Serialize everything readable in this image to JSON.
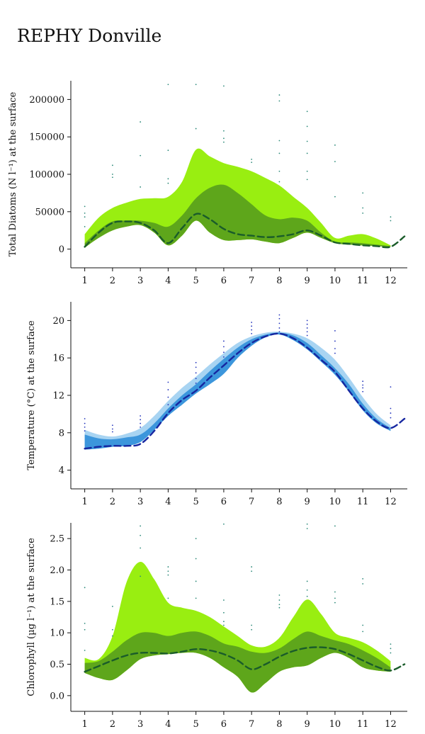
{
  "title": "REPHY Donville",
  "chart_data": [
    {
      "type": "area",
      "ylabel": "Total Diatoms (N l⁻¹) at the surface",
      "x_ticks": [
        1,
        2,
        3,
        4,
        5,
        6,
        7,
        8,
        9,
        10,
        11,
        12
      ],
      "xlim": [
        0.5,
        12.6
      ],
      "y_ticks": [
        0,
        50000,
        100000,
        150000,
        200000
      ],
      "y_tick_labels": [
        "0",
        "50000",
        "100000",
        "150000",
        "200000"
      ],
      "ylim": [
        -25000,
        225000
      ],
      "grid": false,
      "colors": {
        "outer": "#99ee11",
        "inner": "#5ea61b",
        "median": "#1a5c2a",
        "points": "#2e8a7a"
      },
      "median": {
        "x": [
          1,
          1.5,
          2,
          2.5,
          3,
          3.5,
          4,
          4.5,
          5,
          5.5,
          6,
          6.5,
          7,
          7.5,
          8,
          8.5,
          9,
          9.5,
          10,
          10.5,
          11,
          11.5,
          12,
          12.5
        ],
        "y": [
          3000,
          22000,
          35000,
          37000,
          35000,
          25000,
          8000,
          28000,
          47000,
          40000,
          27000,
          20000,
          18000,
          16000,
          17000,
          20000,
          25000,
          18000,
          9000,
          7000,
          5000,
          4000,
          3000,
          17000
        ]
      },
      "inner_band": {
        "x": [
          1,
          1.5,
          2,
          2.5,
          3,
          3.5,
          4,
          4.5,
          5,
          5.5,
          6,
          6.5,
          7,
          7.5,
          8,
          8.5,
          9,
          9.5,
          10,
          10.5,
          11,
          11.5,
          12
        ],
        "lower": [
          2000,
          15000,
          25000,
          30000,
          32000,
          22000,
          5000,
          18000,
          38000,
          22000,
          12000,
          12000,
          13000,
          10000,
          8000,
          15000,
          22000,
          15000,
          8000,
          6000,
          5000,
          4000,
          3000
        ],
        "upper": [
          8000,
          25000,
          37000,
          38000,
          38000,
          35000,
          30000,
          45000,
          68000,
          82000,
          86000,
          75000,
          60000,
          45000,
          40000,
          42000,
          38000,
          22000,
          10000,
          9000,
          8000,
          6000,
          4000
        ]
      },
      "outer_band": {
        "x": [
          1,
          1.5,
          2,
          2.5,
          3,
          3.5,
          4,
          4.5,
          5,
          5.5,
          6,
          6.5,
          7,
          7.5,
          8,
          8.5,
          9,
          9.5,
          10,
          10.5,
          11,
          11.5,
          12
        ],
        "lower": [
          2000,
          15000,
          25000,
          30000,
          32000,
          22000,
          5000,
          18000,
          38000,
          22000,
          12000,
          12000,
          13000,
          10000,
          8000,
          15000,
          22000,
          15000,
          8000,
          6000,
          5000,
          4000,
          3000
        ],
        "upper": [
          20000,
          42000,
          55000,
          62000,
          67000,
          68000,
          70000,
          90000,
          133000,
          124000,
          115000,
          110000,
          104000,
          95000,
          85000,
          70000,
          55000,
          35000,
          15000,
          18000,
          20000,
          14000,
          5000
        ]
      },
      "points": {
        "x": [
          1,
          1,
          1,
          1,
          2,
          2,
          2,
          3,
          3,
          3,
          4,
          4,
          4,
          4,
          5,
          5,
          6,
          6,
          6,
          6,
          7,
          7,
          8,
          8,
          8,
          8,
          8,
          8,
          9,
          9,
          9,
          9,
          9,
          9,
          10,
          10,
          10,
          11,
          11,
          11,
          12,
          12
        ],
        "y": [
          57000,
          48000,
          43000,
          30000,
          112000,
          100000,
          96000,
          170000,
          125000,
          83000,
          220000,
          132000,
          94000,
          88000,
          220000,
          161000,
          218000,
          158000,
          148000,
          143000,
          120000,
          116000,
          206000,
          198000,
          145000,
          128000,
          104000,
          90000,
          184000,
          164000,
          144000,
          128000,
          104000,
          93000,
          139000,
          117000,
          70000,
          75000,
          55000,
          48000,
          43000,
          38000
        ]
      }
    },
    {
      "type": "area",
      "ylabel": "Temperature (°C) at the surface",
      "x_ticks": [
        1,
        2,
        3,
        4,
        5,
        6,
        7,
        8,
        9,
        10,
        11,
        12
      ],
      "xlim": [
        0.5,
        12.6
      ],
      "y_ticks": [
        4,
        8,
        12,
        16,
        20
      ],
      "y_tick_labels": [
        "4",
        "8",
        "12",
        "16",
        "20"
      ],
      "ylim": [
        2,
        22
      ],
      "grid": false,
      "colors": {
        "outer": "#a8d4f2",
        "inner": "#3c96dc",
        "median": "#1626a0",
        "points": "#2233bb"
      },
      "median": {
        "x": [
          1,
          1.5,
          2,
          2.5,
          3,
          3.5,
          4,
          4.5,
          5,
          5.5,
          6,
          6.5,
          7,
          7.5,
          8,
          8.5,
          9,
          9.5,
          10,
          10.5,
          11,
          11.5,
          12,
          12.5
        ],
        "y": [
          6.3,
          6.5,
          6.6,
          6.6,
          6.8,
          8.2,
          10.1,
          11.5,
          12.5,
          13.9,
          15.2,
          16.5,
          17.6,
          18.3,
          18.6,
          18.1,
          17.1,
          15.8,
          14.5,
          12.5,
          10.6,
          9.2,
          8.5,
          9.5
        ]
      },
      "inner_band": {
        "x": [
          1,
          1.5,
          2,
          2.5,
          3,
          3.5,
          4,
          4.5,
          5,
          5.5,
          6,
          6.5,
          7,
          7.5,
          8,
          8.5,
          9,
          9.5,
          10,
          10.5,
          11,
          11.5,
          12
        ],
        "lower": [
          6.2,
          6.3,
          6.5,
          6.6,
          7.0,
          8.3,
          9.8,
          11.0,
          12.2,
          13.2,
          14.3,
          16.0,
          17.3,
          18.2,
          18.5,
          17.9,
          16.9,
          15.6,
          14.2,
          12.4,
          10.4,
          9.0,
          8.2
        ],
        "upper": [
          7.8,
          7.4,
          7.3,
          7.5,
          7.8,
          9.0,
          10.6,
          12.0,
          13.2,
          14.6,
          15.9,
          17.1,
          18.0,
          18.5,
          18.7,
          18.4,
          17.6,
          16.3,
          14.9,
          13.2,
          11.1,
          9.5,
          8.5
        ]
      },
      "outer_band": {
        "x": [
          1,
          1.5,
          2,
          2.5,
          3,
          3.5,
          4,
          4.5,
          5,
          5.5,
          6,
          6.5,
          7,
          7.5,
          8,
          8.5,
          9,
          9.5,
          10,
          10.5,
          11,
          11.5,
          12
        ],
        "lower": [
          6.2,
          6.3,
          6.5,
          6.6,
          7.0,
          8.3,
          9.8,
          11.0,
          12.2,
          13.2,
          14.3,
          16.0,
          17.3,
          18.2,
          18.5,
          17.9,
          16.9,
          15.6,
          14.2,
          12.4,
          10.4,
          9.0,
          8.2
        ],
        "upper": [
          8.3,
          7.8,
          7.6,
          7.9,
          8.5,
          9.8,
          11.4,
          12.8,
          14.0,
          15.3,
          16.5,
          17.6,
          18.3,
          18.7,
          18.8,
          18.6,
          18.1,
          17.1,
          15.8,
          13.9,
          11.8,
          10.0,
          8.8
        ]
      },
      "points": {
        "x": [
          1,
          1,
          1,
          1,
          2,
          2,
          2,
          3,
          3,
          3,
          3,
          4,
          4,
          4,
          4,
          5,
          5,
          5,
          5,
          5,
          6,
          6,
          6,
          6,
          7,
          7,
          7,
          7,
          8,
          8,
          8,
          8,
          8,
          9,
          9,
          9,
          9,
          9,
          10,
          10,
          10,
          10,
          11,
          11,
          11,
          11,
          12,
          12,
          12,
          12
        ],
        "y": [
          9.5,
          9.0,
          8.6,
          8.2,
          8.8,
          8.4,
          8.1,
          9.8,
          9.4,
          9.0,
          8.6,
          13.4,
          12.6,
          11.8,
          11.0,
          15.5,
          15.0,
          14.4,
          13.8,
          13.3,
          17.8,
          17.2,
          16.6,
          16.1,
          19.8,
          19.4,
          19.0,
          18.6,
          20.6,
          20.2,
          19.7,
          19.2,
          18.8,
          20.0,
          19.6,
          19.2,
          18.8,
          18.4,
          18.9,
          17.8,
          17.0,
          16.5,
          13.5,
          13.1,
          12.8,
          12.4,
          12.9,
          10.6,
          10.1,
          9.6
        ]
      }
    },
    {
      "type": "area",
      "ylabel": "Chlorophyll (µg l⁻¹) at the surface",
      "x_ticks": [
        1,
        2,
        3,
        4,
        5,
        6,
        7,
        8,
        9,
        10,
        11,
        12
      ],
      "xlim": [
        0.5,
        12.6
      ],
      "y_ticks": [
        0.0,
        0.5,
        1.0,
        1.5,
        2.0,
        2.5
      ],
      "y_tick_labels": [
        "0.0",
        "0.5",
        "1.0",
        "1.5",
        "2.0",
        "2.5"
      ],
      "ylim": [
        -0.25,
        2.75
      ],
      "grid": false,
      "colors": {
        "outer": "#99ee11",
        "inner": "#5ea61b",
        "median": "#1a5c2a",
        "points": "#2e8a7a"
      },
      "median": {
        "x": [
          1,
          1.5,
          2,
          2.5,
          3,
          3.5,
          4,
          4.5,
          5,
          5.5,
          6,
          6.5,
          7,
          7.5,
          8,
          8.5,
          9,
          9.5,
          10,
          10.5,
          11,
          11.5,
          12,
          12.5
        ],
        "y": [
          0.38,
          0.47,
          0.56,
          0.64,
          0.68,
          0.68,
          0.67,
          0.7,
          0.74,
          0.72,
          0.66,
          0.56,
          0.42,
          0.5,
          0.62,
          0.71,
          0.76,
          0.77,
          0.74,
          0.66,
          0.56,
          0.46,
          0.4,
          0.5
        ]
      },
      "inner_band": {
        "x": [
          1,
          1.5,
          2,
          2.5,
          3,
          3.5,
          4,
          4.5,
          5,
          5.5,
          6,
          6.5,
          7,
          7.5,
          8,
          8.5,
          9,
          9.5,
          10,
          10.5,
          11,
          11.5,
          12
        ],
        "lower": [
          0.36,
          0.28,
          0.25,
          0.4,
          0.58,
          0.64,
          0.66,
          0.68,
          0.68,
          0.6,
          0.45,
          0.3,
          0.05,
          0.2,
          0.38,
          0.45,
          0.48,
          0.6,
          0.68,
          0.6,
          0.45,
          0.4,
          0.38
        ],
        "upper": [
          0.52,
          0.55,
          0.7,
          0.88,
          1.0,
          1.0,
          0.95,
          1.0,
          1.02,
          0.95,
          0.83,
          0.78,
          0.7,
          0.68,
          0.75,
          0.9,
          1.02,
          0.95,
          0.88,
          0.82,
          0.72,
          0.6,
          0.45
        ]
      },
      "outer_band": {
        "x": [
          1,
          1.5,
          2,
          2.5,
          3,
          3.5,
          4,
          4.5,
          5,
          5.5,
          6,
          6.5,
          7,
          7.5,
          8,
          8.5,
          9,
          9.5,
          10,
          10.5,
          11,
          11.5,
          12
        ],
        "lower": [
          0.36,
          0.28,
          0.25,
          0.4,
          0.58,
          0.64,
          0.66,
          0.68,
          0.68,
          0.6,
          0.45,
          0.3,
          0.05,
          0.2,
          0.38,
          0.45,
          0.48,
          0.6,
          0.68,
          0.6,
          0.45,
          0.4,
          0.38
        ],
        "upper": [
          0.6,
          0.58,
          0.95,
          1.8,
          2.13,
          1.85,
          1.48,
          1.4,
          1.35,
          1.25,
          1.1,
          0.95,
          0.8,
          0.78,
          0.92,
          1.25,
          1.53,
          1.3,
          1.0,
          0.92,
          0.85,
          0.72,
          0.55
        ]
      },
      "points": {
        "x": [
          1,
          1,
          1,
          1,
          2,
          2,
          2,
          3,
          3,
          3,
          3,
          4,
          4,
          4,
          4,
          5,
          5,
          5,
          5,
          6,
          6,
          6,
          6,
          6,
          7,
          7,
          7,
          7,
          8,
          8,
          8,
          8,
          9,
          9,
          9,
          9,
          9,
          10,
          10,
          10,
          10,
          11,
          11,
          11,
          11,
          12,
          12,
          12
        ],
        "y": [
          1.72,
          1.15,
          1.05,
          0.72,
          1.42,
          1.05,
          0.95,
          2.7,
          2.55,
          2.35,
          1.9,
          2.05,
          1.98,
          1.92,
          1.55,
          2.5,
          2.18,
          1.82,
          1.55,
          2.73,
          1.52,
          1.32,
          1.18,
          1.12,
          2.05,
          1.98,
          1.12,
          1.05,
          1.6,
          1.52,
          1.45,
          1.4,
          2.73,
          2.66,
          1.82,
          1.68,
          1.58,
          2.7,
          1.65,
          1.55,
          1.48,
          1.86,
          1.78,
          1.12,
          1.02,
          0.82,
          0.75,
          0.68
        ]
      }
    }
  ]
}
